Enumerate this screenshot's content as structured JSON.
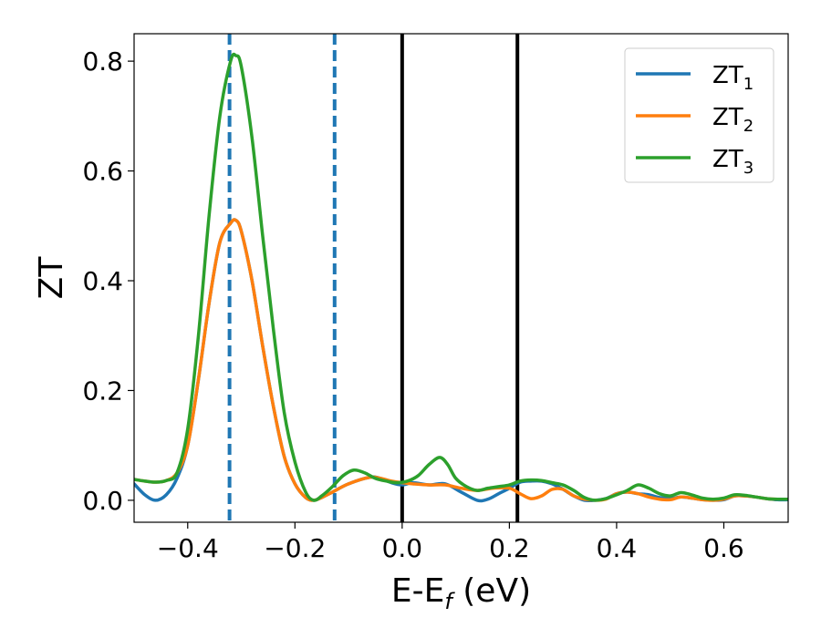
{
  "chart_data": {
    "type": "line",
    "xlabel_main": "E-E",
    "xlabel_sub": "f",
    "xlabel_unit": " (eV)",
    "ylabel": "ZT",
    "xlim": [
      -0.5,
      0.72
    ],
    "ylim": [
      -0.04,
      0.85
    ],
    "xticks": [
      -0.4,
      -0.2,
      0.0,
      0.2,
      0.4,
      0.6
    ],
    "xtick_labels": [
      "−0.4",
      "−0.2",
      "0.0",
      "0.2",
      "0.4",
      "0.6"
    ],
    "yticks": [
      0.0,
      0.2,
      0.4,
      0.6,
      0.8
    ],
    "ytick_labels": [
      "0.0",
      "0.2",
      "0.4",
      "0.6",
      "0.8"
    ],
    "grid": false,
    "legend_position": "top-right",
    "vlines": [
      {
        "x": -0.322,
        "style": "dashed",
        "color": "#1f77b4"
      },
      {
        "x": -0.126,
        "style": "dashed",
        "color": "#1f77b4"
      },
      {
        "x": 0.0,
        "style": "solid",
        "color": "#000000"
      },
      {
        "x": 0.215,
        "style": "solid",
        "color": "#000000"
      }
    ],
    "series": [
      {
        "name": "ZT",
        "sub": "1",
        "color": "#1f77b4",
        "points": [
          [
            -0.5,
            0.03
          ],
          [
            -0.48,
            0.01
          ],
          [
            -0.46,
            0.0
          ],
          [
            -0.44,
            0.01
          ],
          [
            -0.42,
            0.04
          ],
          [
            -0.4,
            0.1
          ],
          [
            -0.38,
            0.22
          ],
          [
            -0.36,
            0.36
          ],
          [
            -0.34,
            0.47
          ],
          [
            -0.32,
            0.505
          ],
          [
            -0.31,
            0.51
          ],
          [
            -0.3,
            0.49
          ],
          [
            -0.28,
            0.4
          ],
          [
            -0.26,
            0.28
          ],
          [
            -0.24,
            0.17
          ],
          [
            -0.22,
            0.08
          ],
          [
            -0.2,
            0.03
          ],
          [
            -0.18,
            0.005
          ],
          [
            -0.165,
            0.0
          ],
          [
            -0.15,
            0.005
          ],
          [
            -0.13,
            0.015
          ],
          [
            -0.1,
            0.03
          ],
          [
            -0.06,
            0.042
          ],
          [
            -0.04,
            0.04
          ],
          [
            -0.02,
            0.032
          ],
          [
            0.0,
            0.028
          ],
          [
            0.02,
            0.032
          ],
          [
            0.05,
            0.028
          ],
          [
            0.08,
            0.03
          ],
          [
            0.11,
            0.015
          ],
          [
            0.14,
            0.0
          ],
          [
            0.16,
            0.002
          ],
          [
            0.18,
            0.012
          ],
          [
            0.2,
            0.022
          ],
          [
            0.22,
            0.033
          ],
          [
            0.24,
            0.035
          ],
          [
            0.26,
            0.035
          ],
          [
            0.28,
            0.03
          ],
          [
            0.3,
            0.02
          ],
          [
            0.32,
            0.008
          ],
          [
            0.34,
            0.0
          ],
          [
            0.36,
            0.0
          ],
          [
            0.38,
            0.003
          ],
          [
            0.4,
            0.012
          ],
          [
            0.42,
            0.015
          ],
          [
            0.44,
            0.012
          ],
          [
            0.46,
            0.01
          ],
          [
            0.48,
            0.005
          ],
          [
            0.5,
            0.003
          ],
          [
            0.52,
            0.006
          ],
          [
            0.54,
            0.004
          ],
          [
            0.56,
            0.001
          ],
          [
            0.58,
            0.0
          ],
          [
            0.6,
            0.001
          ],
          [
            0.62,
            0.008
          ],
          [
            0.64,
            0.008
          ],
          [
            0.66,
            0.006
          ],
          [
            0.68,
            0.003
          ],
          [
            0.7,
            0.001
          ],
          [
            0.72,
            0.001
          ]
        ]
      },
      {
        "name": "ZT",
        "sub": "2",
        "color": "#ff7f0e",
        "points": [
          [
            -0.5,
            0.038
          ],
          [
            -0.48,
            0.035
          ],
          [
            -0.46,
            0.033
          ],
          [
            -0.44,
            0.036
          ],
          [
            -0.42,
            0.05
          ],
          [
            -0.4,
            0.1
          ],
          [
            -0.38,
            0.22
          ],
          [
            -0.36,
            0.36
          ],
          [
            -0.34,
            0.47
          ],
          [
            -0.32,
            0.505
          ],
          [
            -0.31,
            0.51
          ],
          [
            -0.3,
            0.49
          ],
          [
            -0.28,
            0.4
          ],
          [
            -0.26,
            0.28
          ],
          [
            -0.24,
            0.17
          ],
          [
            -0.22,
            0.08
          ],
          [
            -0.2,
            0.03
          ],
          [
            -0.18,
            0.005
          ],
          [
            -0.165,
            0.0
          ],
          [
            -0.15,
            0.005
          ],
          [
            -0.13,
            0.015
          ],
          [
            -0.1,
            0.03
          ],
          [
            -0.06,
            0.042
          ],
          [
            -0.04,
            0.04
          ],
          [
            -0.02,
            0.035
          ],
          [
            0.0,
            0.032
          ],
          [
            0.02,
            0.03
          ],
          [
            0.05,
            0.028
          ],
          [
            0.08,
            0.028
          ],
          [
            0.11,
            0.022
          ],
          [
            0.14,
            0.018
          ],
          [
            0.17,
            0.022
          ],
          [
            0.2,
            0.022
          ],
          [
            0.22,
            0.012
          ],
          [
            0.24,
            0.003
          ],
          [
            0.26,
            0.008
          ],
          [
            0.28,
            0.02
          ],
          [
            0.3,
            0.02
          ],
          [
            0.32,
            0.008
          ],
          [
            0.34,
            0.002
          ],
          [
            0.36,
            0.0
          ],
          [
            0.38,
            0.002
          ],
          [
            0.4,
            0.012
          ],
          [
            0.42,
            0.015
          ],
          [
            0.44,
            0.012
          ],
          [
            0.46,
            0.006
          ],
          [
            0.48,
            0.002
          ],
          [
            0.5,
            0.001
          ],
          [
            0.52,
            0.006
          ],
          [
            0.54,
            0.004
          ],
          [
            0.56,
            0.001
          ],
          [
            0.58,
            0.0
          ],
          [
            0.6,
            0.002
          ],
          [
            0.62,
            0.008
          ],
          [
            0.64,
            0.008
          ],
          [
            0.66,
            0.006
          ],
          [
            0.68,
            0.003
          ],
          [
            0.7,
            0.002
          ],
          [
            0.72,
            0.002
          ]
        ]
      },
      {
        "name": "ZT",
        "sub": "3",
        "color": "#2ca02c",
        "points": [
          [
            -0.5,
            0.038
          ],
          [
            -0.48,
            0.035
          ],
          [
            -0.46,
            0.033
          ],
          [
            -0.44,
            0.036
          ],
          [
            -0.42,
            0.05
          ],
          [
            -0.4,
            0.13
          ],
          [
            -0.38,
            0.3
          ],
          [
            -0.36,
            0.52
          ],
          [
            -0.34,
            0.7
          ],
          [
            -0.32,
            0.8
          ],
          [
            -0.31,
            0.81
          ],
          [
            -0.3,
            0.79
          ],
          [
            -0.28,
            0.66
          ],
          [
            -0.26,
            0.48
          ],
          [
            -0.24,
            0.31
          ],
          [
            -0.22,
            0.16
          ],
          [
            -0.2,
            0.07
          ],
          [
            -0.18,
            0.015
          ],
          [
            -0.165,
            0.0
          ],
          [
            -0.15,
            0.008
          ],
          [
            -0.13,
            0.025
          ],
          [
            -0.11,
            0.045
          ],
          [
            -0.09,
            0.055
          ],
          [
            -0.07,
            0.05
          ],
          [
            -0.05,
            0.04
          ],
          [
            -0.03,
            0.035
          ],
          [
            -0.01,
            0.032
          ],
          [
            0.01,
            0.035
          ],
          [
            0.03,
            0.045
          ],
          [
            0.05,
            0.065
          ],
          [
            0.07,
            0.078
          ],
          [
            0.085,
            0.065
          ],
          [
            0.1,
            0.04
          ],
          [
            0.12,
            0.025
          ],
          [
            0.14,
            0.018
          ],
          [
            0.16,
            0.022
          ],
          [
            0.18,
            0.025
          ],
          [
            0.2,
            0.028
          ],
          [
            0.22,
            0.035
          ],
          [
            0.24,
            0.037
          ],
          [
            0.26,
            0.036
          ],
          [
            0.28,
            0.032
          ],
          [
            0.3,
            0.028
          ],
          [
            0.32,
            0.018
          ],
          [
            0.34,
            0.005
          ],
          [
            0.36,
            0.0
          ],
          [
            0.38,
            0.003
          ],
          [
            0.4,
            0.01
          ],
          [
            0.42,
            0.018
          ],
          [
            0.44,
            0.028
          ],
          [
            0.46,
            0.022
          ],
          [
            0.48,
            0.012
          ],
          [
            0.5,
            0.008
          ],
          [
            0.52,
            0.014
          ],
          [
            0.54,
            0.01
          ],
          [
            0.56,
            0.004
          ],
          [
            0.58,
            0.002
          ],
          [
            0.6,
            0.004
          ],
          [
            0.62,
            0.01
          ],
          [
            0.64,
            0.009
          ],
          [
            0.66,
            0.006
          ],
          [
            0.68,
            0.003
          ],
          [
            0.7,
            0.002
          ],
          [
            0.72,
            0.002
          ]
        ]
      }
    ]
  }
}
